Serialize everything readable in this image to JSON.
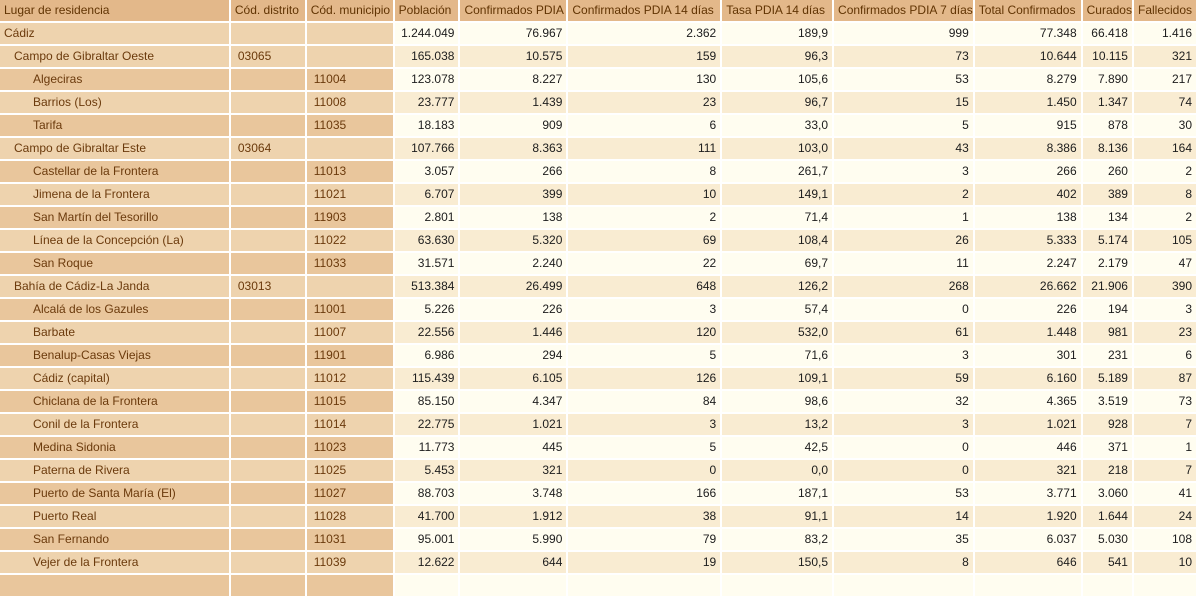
{
  "colors": {
    "header_bg": "#e3b88a",
    "header_text": "#613403",
    "left_light": "#eed3ae",
    "left_dark": "#e9c69c",
    "name_text": "#6b3a0c",
    "row_ivory": "#fffdf0",
    "row_peach": "#f9ecd2",
    "num_text": "#1c1c1c",
    "separator": "#ffffff"
  },
  "chart_data": {
    "type": "table",
    "columns": [
      "Lugar de residencia",
      "Cód. distrito",
      "Cód. municipio",
      "Población",
      "Confirmados PDIA",
      "Confirmados PDIA 14 días",
      "Tasa PDIA 14 días",
      "Confirmados PDIA 7 días",
      "Total Confirmados",
      "Curados",
      "Fallecidos"
    ],
    "rows": [
      {
        "lugar": "Cádiz",
        "level": 0,
        "cod_distrito": "",
        "cod_municipio": "",
        "poblacion": "1.244.049",
        "confirmados_pdia": "76.967",
        "confirmados_pdia_14": "2.362",
        "tasa_pdia_14": "189,9",
        "confirmados_pdia_7": "999",
        "total_confirmados": "77.348",
        "curados": "66.418",
        "fallecidos": "1.416"
      },
      {
        "lugar": "Campo de Gibraltar Oeste",
        "level": 1,
        "cod_distrito": "03065",
        "cod_municipio": "",
        "poblacion": "165.038",
        "confirmados_pdia": "10.575",
        "confirmados_pdia_14": "159",
        "tasa_pdia_14": "96,3",
        "confirmados_pdia_7": "73",
        "total_confirmados": "10.644",
        "curados": "10.115",
        "fallecidos": "321"
      },
      {
        "lugar": "Algeciras",
        "level": 2,
        "cod_distrito": "",
        "cod_municipio": "11004",
        "poblacion": "123.078",
        "confirmados_pdia": "8.227",
        "confirmados_pdia_14": "130",
        "tasa_pdia_14": "105,6",
        "confirmados_pdia_7": "53",
        "total_confirmados": "8.279",
        "curados": "7.890",
        "fallecidos": "217"
      },
      {
        "lugar": "Barrios (Los)",
        "level": 2,
        "cod_distrito": "",
        "cod_municipio": "11008",
        "poblacion": "23.777",
        "confirmados_pdia": "1.439",
        "confirmados_pdia_14": "23",
        "tasa_pdia_14": "96,7",
        "confirmados_pdia_7": "15",
        "total_confirmados": "1.450",
        "curados": "1.347",
        "fallecidos": "74"
      },
      {
        "lugar": "Tarifa",
        "level": 2,
        "cod_distrito": "",
        "cod_municipio": "11035",
        "poblacion": "18.183",
        "confirmados_pdia": "909",
        "confirmados_pdia_14": "6",
        "tasa_pdia_14": "33,0",
        "confirmados_pdia_7": "5",
        "total_confirmados": "915",
        "curados": "878",
        "fallecidos": "30"
      },
      {
        "lugar": "Campo de Gibraltar Este",
        "level": 1,
        "cod_distrito": "03064",
        "cod_municipio": "",
        "poblacion": "107.766",
        "confirmados_pdia": "8.363",
        "confirmados_pdia_14": "111",
        "tasa_pdia_14": "103,0",
        "confirmados_pdia_7": "43",
        "total_confirmados": "8.386",
        "curados": "8.136",
        "fallecidos": "164"
      },
      {
        "lugar": "Castellar de la Frontera",
        "level": 2,
        "cod_distrito": "",
        "cod_municipio": "11013",
        "poblacion": "3.057",
        "confirmados_pdia": "266",
        "confirmados_pdia_14": "8",
        "tasa_pdia_14": "261,7",
        "confirmados_pdia_7": "3",
        "total_confirmados": "266",
        "curados": "260",
        "fallecidos": "2"
      },
      {
        "lugar": "Jimena de la Frontera",
        "level": 2,
        "cod_distrito": "",
        "cod_municipio": "11021",
        "poblacion": "6.707",
        "confirmados_pdia": "399",
        "confirmados_pdia_14": "10",
        "tasa_pdia_14": "149,1",
        "confirmados_pdia_7": "2",
        "total_confirmados": "402",
        "curados": "389",
        "fallecidos": "8"
      },
      {
        "lugar": "San Martín del Tesorillo",
        "level": 2,
        "cod_distrito": "",
        "cod_municipio": "11903",
        "poblacion": "2.801",
        "confirmados_pdia": "138",
        "confirmados_pdia_14": "2",
        "tasa_pdia_14": "71,4",
        "confirmados_pdia_7": "1",
        "total_confirmados": "138",
        "curados": "134",
        "fallecidos": "2"
      },
      {
        "lugar": "Línea de la Concepción (La)",
        "level": 2,
        "cod_distrito": "",
        "cod_municipio": "11022",
        "poblacion": "63.630",
        "confirmados_pdia": "5.320",
        "confirmados_pdia_14": "69",
        "tasa_pdia_14": "108,4",
        "confirmados_pdia_7": "26",
        "total_confirmados": "5.333",
        "curados": "5.174",
        "fallecidos": "105"
      },
      {
        "lugar": "San Roque",
        "level": 2,
        "cod_distrito": "",
        "cod_municipio": "11033",
        "poblacion": "31.571",
        "confirmados_pdia": "2.240",
        "confirmados_pdia_14": "22",
        "tasa_pdia_14": "69,7",
        "confirmados_pdia_7": "11",
        "total_confirmados": "2.247",
        "curados": "2.179",
        "fallecidos": "47"
      },
      {
        "lugar": "Bahía de Cádiz-La Janda",
        "level": 1,
        "cod_distrito": "03013",
        "cod_municipio": "",
        "poblacion": "513.384",
        "confirmados_pdia": "26.499",
        "confirmados_pdia_14": "648",
        "tasa_pdia_14": "126,2",
        "confirmados_pdia_7": "268",
        "total_confirmados": "26.662",
        "curados": "21.906",
        "fallecidos": "390"
      },
      {
        "lugar": "Alcalá de los Gazules",
        "level": 2,
        "cod_distrito": "",
        "cod_municipio": "11001",
        "poblacion": "5.226",
        "confirmados_pdia": "226",
        "confirmados_pdia_14": "3",
        "tasa_pdia_14": "57,4",
        "confirmados_pdia_7": "0",
        "total_confirmados": "226",
        "curados": "194",
        "fallecidos": "3"
      },
      {
        "lugar": "Barbate",
        "level": 2,
        "cod_distrito": "",
        "cod_municipio": "11007",
        "poblacion": "22.556",
        "confirmados_pdia": "1.446",
        "confirmados_pdia_14": "120",
        "tasa_pdia_14": "532,0",
        "confirmados_pdia_7": "61",
        "total_confirmados": "1.448",
        "curados": "981",
        "fallecidos": "23"
      },
      {
        "lugar": "Benalup-Casas Viejas",
        "level": 2,
        "cod_distrito": "",
        "cod_municipio": "11901",
        "poblacion": "6.986",
        "confirmados_pdia": "294",
        "confirmados_pdia_14": "5",
        "tasa_pdia_14": "71,6",
        "confirmados_pdia_7": "3",
        "total_confirmados": "301",
        "curados": "231",
        "fallecidos": "6"
      },
      {
        "lugar": "Cádiz (capital)",
        "level": 2,
        "cod_distrito": "",
        "cod_municipio": "11012",
        "poblacion": "115.439",
        "confirmados_pdia": "6.105",
        "confirmados_pdia_14": "126",
        "tasa_pdia_14": "109,1",
        "confirmados_pdia_7": "59",
        "total_confirmados": "6.160",
        "curados": "5.189",
        "fallecidos": "87"
      },
      {
        "lugar": "Chiclana de la Frontera",
        "level": 2,
        "cod_distrito": "",
        "cod_municipio": "11015",
        "poblacion": "85.150",
        "confirmados_pdia": "4.347",
        "confirmados_pdia_14": "84",
        "tasa_pdia_14": "98,6",
        "confirmados_pdia_7": "32",
        "total_confirmados": "4.365",
        "curados": "3.519",
        "fallecidos": "73"
      },
      {
        "lugar": "Conil de la Frontera",
        "level": 2,
        "cod_distrito": "",
        "cod_municipio": "11014",
        "poblacion": "22.775",
        "confirmados_pdia": "1.021",
        "confirmados_pdia_14": "3",
        "tasa_pdia_14": "13,2",
        "confirmados_pdia_7": "3",
        "total_confirmados": "1.021",
        "curados": "928",
        "fallecidos": "7"
      },
      {
        "lugar": "Medina Sidonia",
        "level": 2,
        "cod_distrito": "",
        "cod_municipio": "11023",
        "poblacion": "11.773",
        "confirmados_pdia": "445",
        "confirmados_pdia_14": "5",
        "tasa_pdia_14": "42,5",
        "confirmados_pdia_7": "0",
        "total_confirmados": "446",
        "curados": "371",
        "fallecidos": "1"
      },
      {
        "lugar": "Paterna de Rivera",
        "level": 2,
        "cod_distrito": "",
        "cod_municipio": "11025",
        "poblacion": "5.453",
        "confirmados_pdia": "321",
        "confirmados_pdia_14": "0",
        "tasa_pdia_14": "0,0",
        "confirmados_pdia_7": "0",
        "total_confirmados": "321",
        "curados": "218",
        "fallecidos": "7"
      },
      {
        "lugar": "Puerto de Santa María (El)",
        "level": 2,
        "cod_distrito": "",
        "cod_municipio": "11027",
        "poblacion": "88.703",
        "confirmados_pdia": "3.748",
        "confirmados_pdia_14": "166",
        "tasa_pdia_14": "187,1",
        "confirmados_pdia_7": "53",
        "total_confirmados": "3.771",
        "curados": "3.060",
        "fallecidos": "41"
      },
      {
        "lugar": "Puerto Real",
        "level": 2,
        "cod_distrito": "",
        "cod_municipio": "11028",
        "poblacion": "41.700",
        "confirmados_pdia": "1.912",
        "confirmados_pdia_14": "38",
        "tasa_pdia_14": "91,1",
        "confirmados_pdia_7": "14",
        "total_confirmados": "1.920",
        "curados": "1.644",
        "fallecidos": "24"
      },
      {
        "lugar": "San Fernando",
        "level": 2,
        "cod_distrito": "",
        "cod_municipio": "11031",
        "poblacion": "95.001",
        "confirmados_pdia": "5.990",
        "confirmados_pdia_14": "79",
        "tasa_pdia_14": "83,2",
        "confirmados_pdia_7": "35",
        "total_confirmados": "6.037",
        "curados": "5.030",
        "fallecidos": "108"
      },
      {
        "lugar": "Vejer de la Frontera",
        "level": 2,
        "cod_distrito": "",
        "cod_municipio": "11039",
        "poblacion": "12.622",
        "confirmados_pdia": "644",
        "confirmados_pdia_14": "19",
        "tasa_pdia_14": "150,5",
        "confirmados_pdia_7": "8",
        "total_confirmados": "646",
        "curados": "541",
        "fallecidos": "10"
      }
    ]
  }
}
